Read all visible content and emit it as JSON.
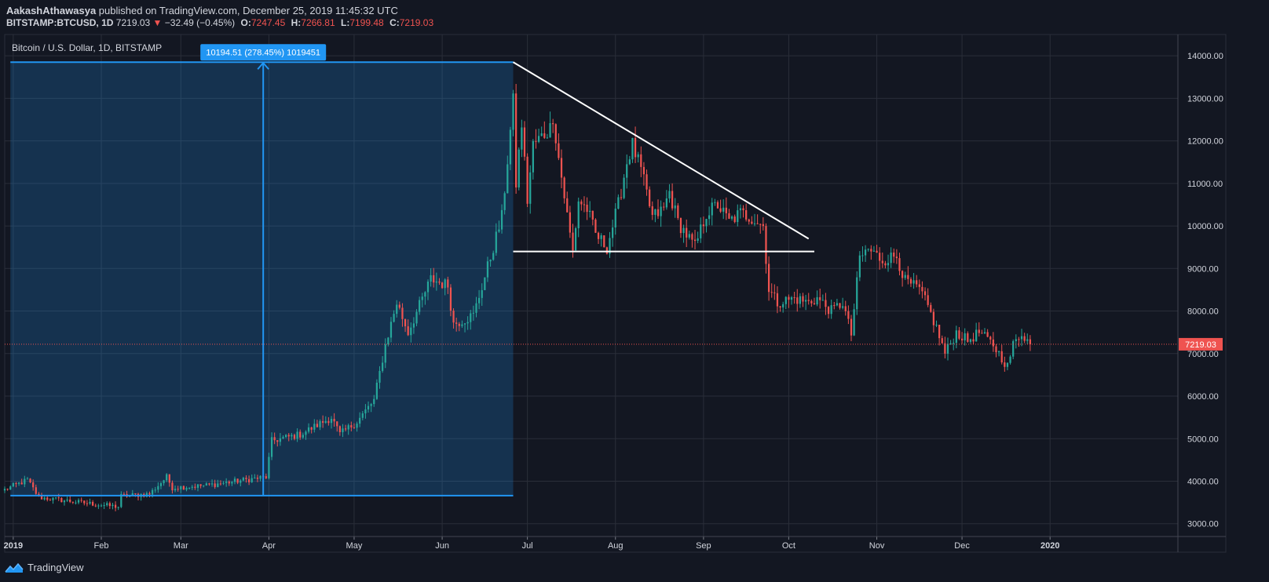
{
  "header": {
    "author": "AakashAthawasya",
    "published_text": "published on TradingView.com, December 25, 2019 11:45:32 UTC",
    "symbol": "BITSTAMP:BTCUSD, 1D",
    "last": "7219.03",
    "change_arrow": "▼",
    "change": "−32.49 (−0.45%)",
    "open_label": "O:",
    "open": "7247.45",
    "high_label": "H:",
    "high": "7266.81",
    "low_label": "L:",
    "low": "7199.48",
    "close_label": "C:",
    "close": "7219.03"
  },
  "footer": {
    "brand": "TradingView",
    "logo_icon": "tradingview-logo-icon"
  },
  "colors": {
    "background": "#131722",
    "up": "#26a69a",
    "down": "#ef5350",
    "grid": "#2a2e39",
    "measure": "#2196f3",
    "trendline": "#ffffff"
  },
  "chart_data": {
    "type": "candlestick",
    "title": "Bitcoin / U.S. Dollar, 1D, BITSTAMP",
    "ylim": [
      2700,
      14500
    ],
    "y_ticks": [
      3000,
      4000,
      5000,
      6000,
      7000,
      8000,
      9000,
      10000,
      11000,
      12000,
      13000,
      14000
    ],
    "y_tick_labels": [
      "3000.00",
      "4000.00",
      "5000.00",
      "6000.00",
      "7000.00",
      "8000.00",
      "9000.00",
      "10000.00",
      "11000.00",
      "12000.00",
      "13000.00",
      "14000.00"
    ],
    "x_ticks": [
      "2019-01-01",
      "2019-02-01",
      "2019-03-01",
      "2019-04-01",
      "2019-05-01",
      "2019-06-01",
      "2019-07-01",
      "2019-08-01",
      "2019-09-01",
      "2019-10-01",
      "2019-11-01",
      "2019-12-01",
      "2020-01-01"
    ],
    "x_tick_labels": [
      "2019",
      "Feb",
      "Mar",
      "Apr",
      "May",
      "Jun",
      "Jul",
      "Aug",
      "Sep",
      "Oct",
      "Nov",
      "Dec",
      "2020"
    ],
    "x_range": [
      "2018-12-29",
      "2020-02-15"
    ],
    "last_price": 7219.03,
    "last_price_label": "7219.03",
    "daily_close_path": [
      [
        "2018-12-29",
        3800
      ],
      [
        "2019-01-06",
        4030
      ],
      [
        "2019-01-10",
        3620
      ],
      [
        "2019-01-31",
        3450
      ],
      [
        "2019-02-07",
        3400
      ],
      [
        "2019-02-08",
        3650
      ],
      [
        "2019-02-18",
        3700
      ],
      [
        "2019-02-24",
        4100
      ],
      [
        "2019-02-26",
        3850
      ],
      [
        "2019-03-10",
        3900
      ],
      [
        "2019-03-31",
        4100
      ],
      [
        "2019-04-02",
        4950
      ],
      [
        "2019-04-12",
        5100
      ],
      [
        "2019-04-23",
        5500
      ],
      [
        "2019-04-26",
        5100
      ],
      [
        "2019-05-02",
        5400
      ],
      [
        "2019-05-08",
        5900
      ],
      [
        "2019-05-12",
        7200
      ],
      [
        "2019-05-16",
        8200
      ],
      [
        "2019-05-20",
        7500
      ],
      [
        "2019-05-28",
        8750
      ],
      [
        "2019-06-03",
        8600
      ],
      [
        "2019-06-05",
        7700
      ],
      [
        "2019-06-12",
        7900
      ],
      [
        "2019-06-16",
        8800
      ],
      [
        "2019-06-22",
        10200
      ],
      [
        "2019-06-26",
        12900
      ],
      [
        "2019-06-27",
        11000
      ],
      [
        "2019-06-29",
        12400
      ],
      [
        "2019-07-01",
        10600
      ],
      [
        "2019-07-03",
        11900
      ],
      [
        "2019-07-09",
        12300
      ],
      [
        "2019-07-10",
        12600
      ],
      [
        "2019-07-12",
        11600
      ],
      [
        "2019-07-16",
        9800
      ],
      [
        "2019-07-17",
        9400
      ],
      [
        "2019-07-19",
        10600
      ],
      [
        "2019-07-22",
        10400
      ],
      [
        "2019-07-25",
        9800
      ],
      [
        "2019-07-29",
        9500
      ],
      [
        "2019-08-02",
        10500
      ],
      [
        "2019-08-05",
        11500
      ],
      [
        "2019-08-07",
        11900
      ],
      [
        "2019-08-10",
        11300
      ],
      [
        "2019-08-14",
        10200
      ],
      [
        "2019-08-18",
        10400
      ],
      [
        "2019-08-20",
        10800
      ],
      [
        "2019-08-23",
        10100
      ],
      [
        "2019-08-29",
        9500
      ],
      [
        "2019-09-02",
        10300
      ],
      [
        "2019-09-06",
        10500
      ],
      [
        "2019-09-10",
        10100
      ],
      [
        "2019-09-14",
        10300
      ],
      [
        "2019-09-18",
        10200
      ],
      [
        "2019-09-22",
        10000
      ],
      [
        "2019-09-24",
        8500
      ],
      [
        "2019-09-27",
        8200
      ],
      [
        "2019-10-03",
        8300
      ],
      [
        "2019-10-08",
        8200
      ],
      [
        "2019-10-11",
        8300
      ],
      [
        "2019-10-16",
        8000
      ],
      [
        "2019-10-20",
        8200
      ],
      [
        "2019-10-23",
        7450
      ],
      [
        "2019-10-26",
        9250
      ],
      [
        "2019-10-29",
        9450
      ],
      [
        "2019-11-03",
        9200
      ],
      [
        "2019-11-08",
        9300
      ],
      [
        "2019-11-11",
        8700
      ],
      [
        "2019-11-16",
        8500
      ],
      [
        "2019-11-19",
        8100
      ],
      [
        "2019-11-22",
        7600
      ],
      [
        "2019-11-25",
        7000
      ],
      [
        "2019-11-29",
        7500
      ],
      [
        "2019-12-03",
        7300
      ],
      [
        "2019-12-07",
        7500
      ],
      [
        "2019-12-12",
        7200
      ],
      [
        "2019-12-17",
        6700
      ],
      [
        "2019-12-19",
        7200
      ],
      [
        "2019-12-22",
        7500
      ],
      [
        "2019-12-25",
        7219
      ]
    ],
    "measure_tool": {
      "label": "10194.51 (278.45%) 1019451",
      "start_date": "2018-12-31",
      "end_date": "2019-06-26",
      "low": 3660,
      "high": 13850,
      "arrow_date": "2019-03-30"
    },
    "trendlines": [
      {
        "name": "descending-resistance",
        "from": [
          "2019-06-26",
          13850
        ],
        "to": [
          "2019-10-08",
          9700
        ]
      },
      {
        "name": "horizontal-support",
        "from": [
          "2019-06-26",
          9400
        ],
        "to": [
          "2019-10-10",
          9400
        ]
      }
    ]
  }
}
